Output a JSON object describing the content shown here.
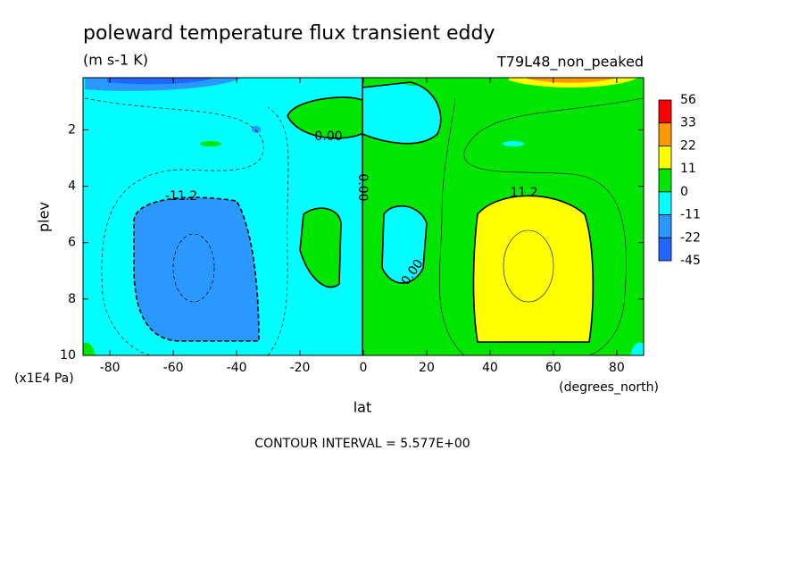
{
  "chart_data": {
    "type": "contour",
    "title": "poleward temperature flux transient eddy",
    "subtitle": "(m s-1 K)",
    "experiment": "T79L48_non_peaked",
    "x_label": "lat",
    "x_units": "(degrees_north)",
    "y_label": "plev",
    "y_units": "(x1E4 Pa)",
    "xlim": [
      -88.5,
      88.5
    ],
    "xticks": [
      -80,
      -60,
      -40,
      -20,
      0,
      20,
      40,
      60,
      80
    ],
    "ylim": [
      10,
      0.15
    ],
    "yticks": [
      2,
      4,
      6,
      8,
      10
    ],
    "colorbar": {
      "levels": [
        56,
        33,
        22,
        11,
        0,
        -11,
        -22,
        -45
      ],
      "colors": [
        "#ff0000",
        "#ff9900",
        "#ffff00",
        "#00e600",
        "#00ffff",
        "#2a98ff",
        "#2066ff"
      ]
    },
    "contour_labels": [
      "-11.2",
      "0.00",
      "0.00",
      "11.2",
      "0.00"
    ],
    "footer": "CONTOUR INTERVAL = 5.577E+00"
  }
}
